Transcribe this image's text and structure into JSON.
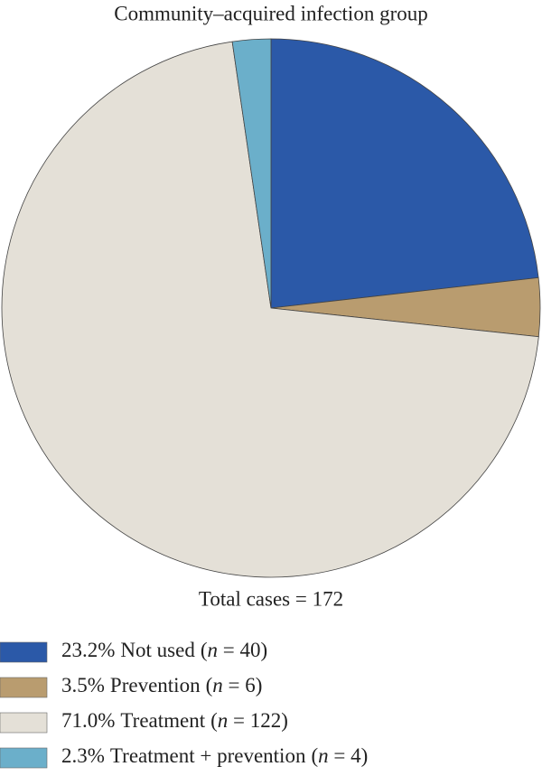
{
  "chart_data": {
    "type": "pie",
    "title": "Community–acquired infection group",
    "categories": [
      "Not used",
      "Prevention",
      "Treatment",
      "Treatment + prevention"
    ],
    "values": [
      23.2,
      3.5,
      71.0,
      2.3
    ],
    "value_labels": [
      "23.2%",
      "3.5%",
      "71.0%",
      "2.3%"
    ],
    "count_labels": [
      "(n = 40)",
      "(n = 6)",
      "(n = 122)",
      "(n = 4)"
    ],
    "colors": [
      "#2b59a8",
      "#b99c6f",
      "#e4e0d7",
      "#6bafca"
    ],
    "total_label": "Total cases = 172"
  }
}
